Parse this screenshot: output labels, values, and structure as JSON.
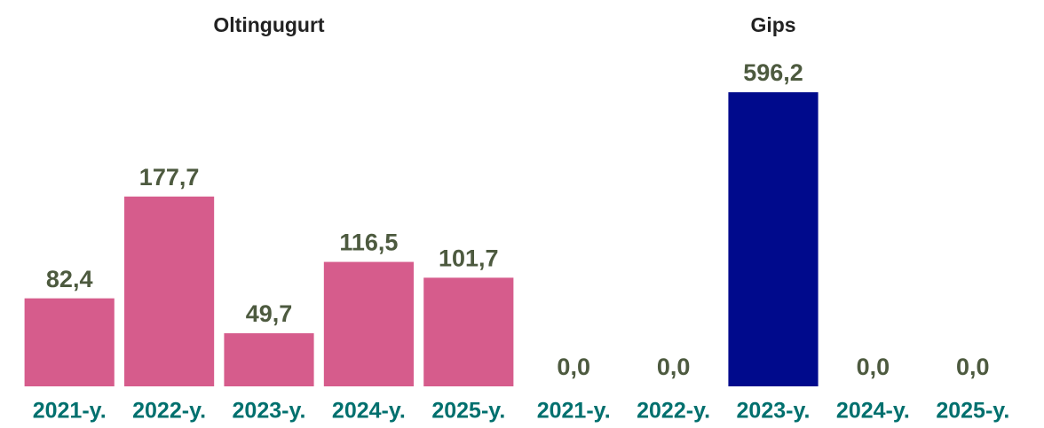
{
  "chart_data": [
    {
      "type": "bar",
      "title": "Oltingugurt",
      "categories": [
        "2021-y.",
        "2022-y.",
        "2023-y.",
        "2024-y.",
        "2025-y."
      ],
      "values": [
        82.4,
        177.7,
        49.7,
        116.5,
        101.7
      ],
      "value_labels": [
        "82,4",
        "177,7",
        "49,7",
        "116,5",
        "101,7"
      ],
      "color": "#d65c8c",
      "ylim": [
        0,
        180
      ]
    },
    {
      "type": "bar",
      "title": "Gips",
      "categories": [
        "2021-y.",
        "2022-y.",
        "2023-y.",
        "2024-y.",
        "2025-y."
      ],
      "values": [
        0.0,
        0.0,
        596.2,
        0.0,
        0.0
      ],
      "value_labels": [
        "0,0",
        "0,0",
        "596,2",
        "0,0",
        "0,0"
      ],
      "color": "#000a8c",
      "ylim": [
        0,
        600
      ]
    }
  ]
}
